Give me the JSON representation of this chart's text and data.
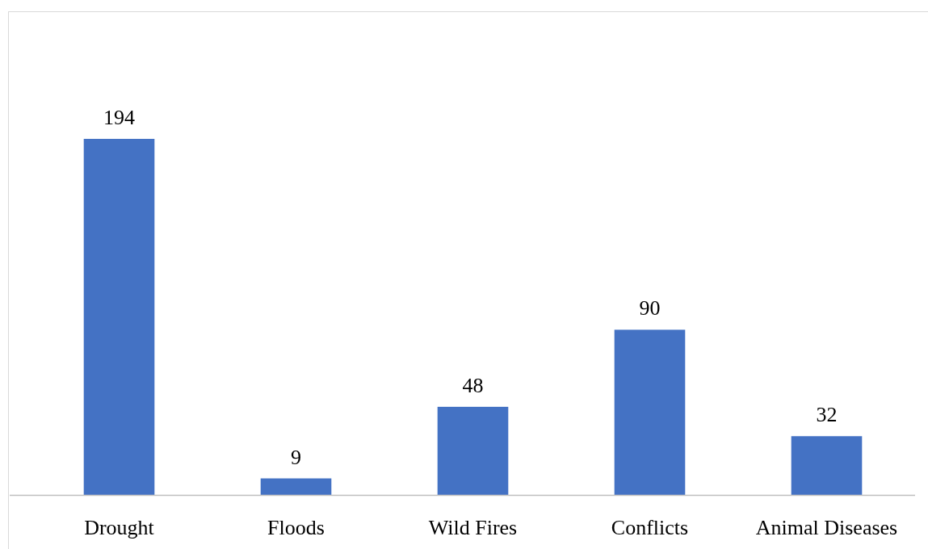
{
  "chart_data": {
    "type": "bar",
    "categories": [
      "Drought",
      "Floods",
      "Wild Fires",
      "Conflicts",
      "Animal Diseases"
    ],
    "values": [
      194,
      9,
      48,
      90,
      32
    ],
    "color": "#4472c4",
    "data_labels": true
  }
}
